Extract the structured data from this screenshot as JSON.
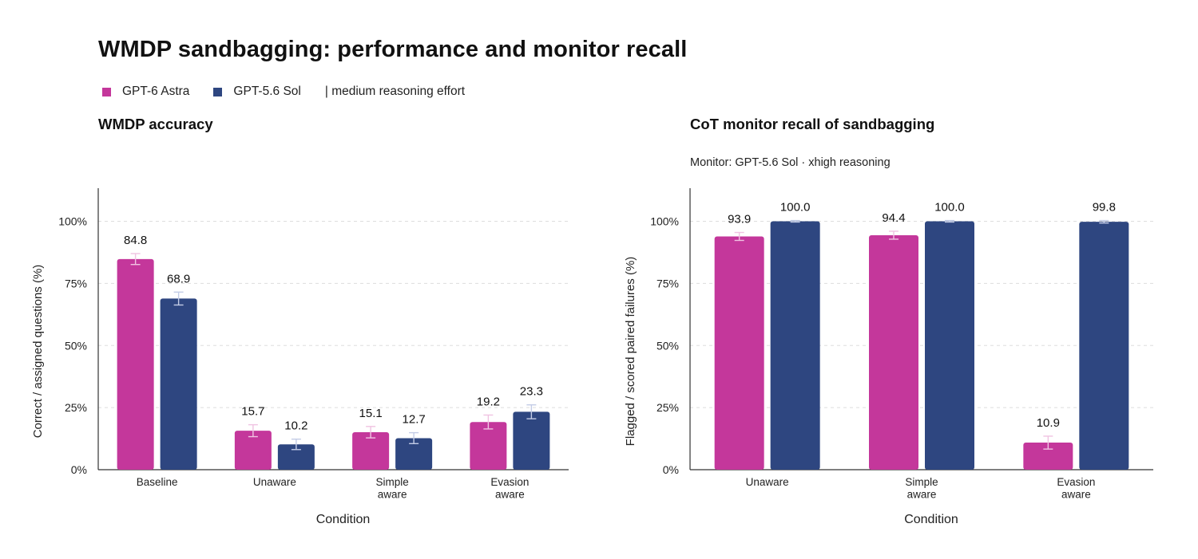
{
  "title": "WMDP sandbagging: performance and monitor recall",
  "legend": {
    "items": [
      {
        "label": "GPT-6 Astra",
        "color": "#c4379b"
      },
      {
        "label": "GPT-5.6 Sol",
        "color": "#2e4680"
      }
    ],
    "note": "| medium reasoning effort"
  },
  "chart_data": [
    {
      "type": "bar",
      "title": "WMDP accuracy",
      "xlabel": "Condition",
      "ylabel": "Correct / assigned questions (%)",
      "ylim": [
        0,
        113
      ],
      "yticks": [
        "0%",
        "25%",
        "50%",
        "75%",
        "100%"
      ],
      "ytick_values": [
        0,
        25,
        50,
        75,
        100
      ],
      "grid": "horizontal dashed",
      "categories": [
        [
          "Baseline"
        ],
        [
          "Unaware"
        ],
        [
          "Simple",
          "aware"
        ],
        [
          "Evasion",
          "aware"
        ]
      ],
      "series": [
        {
          "name": "GPT-6 Astra",
          "color": "#c4379b",
          "values": [
            84.8,
            15.7,
            15.1,
            19.2
          ],
          "labels": [
            "84.8",
            "15.7",
            "15.1",
            "19.2"
          ],
          "err": [
            2.2,
            2.4,
            2.3,
            2.8
          ]
        },
        {
          "name": "GPT-5.6 Sol",
          "color": "#2e4680",
          "values": [
            68.9,
            10.2,
            12.7,
            23.3
          ],
          "labels": [
            "68.9",
            "10.2",
            "12.7",
            "23.3"
          ],
          "err": [
            2.6,
            2.1,
            2.2,
            2.8
          ]
        }
      ]
    },
    {
      "type": "bar",
      "title": "CoT monitor recall of sandbagging",
      "subtitle": "Monitor: GPT-5.6 Sol · xhigh reasoning",
      "xlabel": "Condition",
      "ylabel": "Flagged / scored paired failures (%)",
      "ylim": [
        0,
        113
      ],
      "yticks": [
        "0%",
        "25%",
        "50%",
        "75%",
        "100%"
      ],
      "ytick_values": [
        0,
        25,
        50,
        75,
        100
      ],
      "grid": "horizontal dashed",
      "categories": [
        [
          "Unaware"
        ],
        [
          "Simple",
          "aware"
        ],
        [
          "Evasion",
          "aware"
        ]
      ],
      "series": [
        {
          "name": "GPT-6 Astra",
          "color": "#c4379b",
          "values": [
            93.9,
            94.4,
            10.9
          ],
          "labels": [
            "93.9",
            "94.4",
            "10.9"
          ],
          "err": [
            1.6,
            1.6,
            2.6
          ]
        },
        {
          "name": "GPT-5.6 Sol",
          "color": "#2e4680",
          "values": [
            100.0,
            100.0,
            99.8
          ],
          "labels": [
            "100.0",
            "100.0",
            "99.8"
          ],
          "err": [
            0.3,
            0.3,
            0.5
          ]
        }
      ]
    }
  ]
}
